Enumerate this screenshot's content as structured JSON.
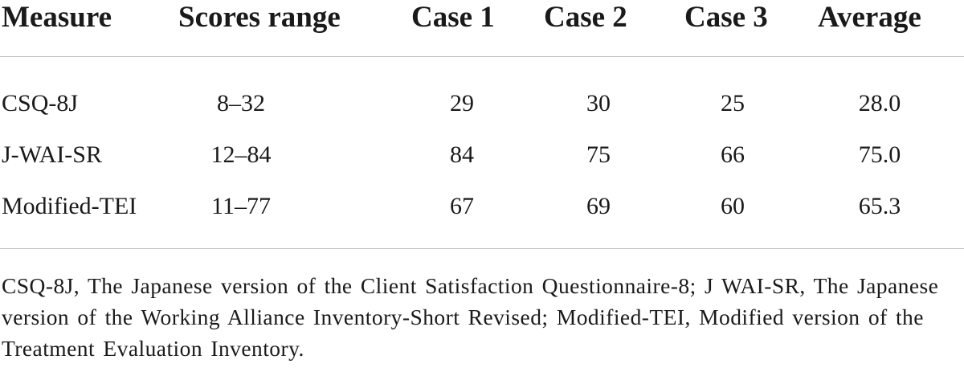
{
  "table": {
    "headers": {
      "measure": "Measure",
      "scores_range": "Scores range",
      "case1": "Case 1",
      "case2": "Case 2",
      "case3": "Case 3",
      "average": "Average"
    },
    "rows": [
      {
        "measure": "CSQ-8J",
        "scores_range": "8–32",
        "case1": "29",
        "case2": "30",
        "case3": "25",
        "average": "28.0"
      },
      {
        "measure": "J-WAI-SR",
        "scores_range": "12–84",
        "case1": "84",
        "case2": "75",
        "case3": "66",
        "average": "75.0"
      },
      {
        "measure": "Modified-TEI",
        "scores_range": "11–77",
        "case1": "67",
        "case2": "69",
        "case3": "60",
        "average": "65.3"
      }
    ],
    "footnote": "CSQ-8J, The Japanese version of the Client Satisfaction Questionnaire-8; J WAI-SR, The Japanese version of the Working Alliance Inventory-Short Revised; Modified-TEI, Modified version of the Treatment Evaluation Inventory."
  }
}
